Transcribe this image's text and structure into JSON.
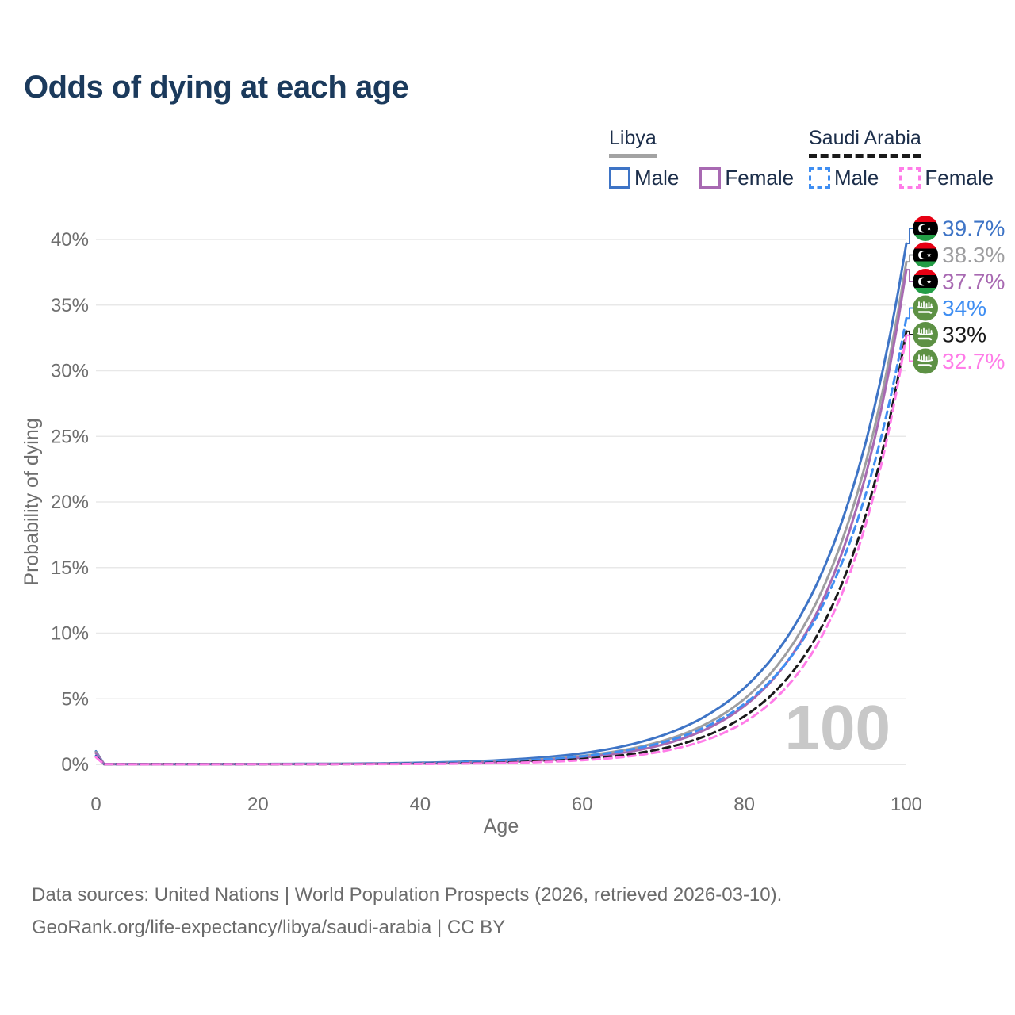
{
  "title": "Odds of dying at each age",
  "legend": {
    "groups": [
      {
        "country": "Libya",
        "underline_style": "solid",
        "underline_color": "#a3a3a3",
        "items": [
          {
            "label": "Male",
            "color": "#3e74c6",
            "dashed": false
          },
          {
            "label": "Female",
            "color": "#a869b2",
            "dashed": false
          }
        ]
      },
      {
        "country": "Saudi Arabia",
        "underline_style": "dashed",
        "underline_color": "#1a1a1a",
        "items": [
          {
            "label": "Male",
            "color": "#3f8ef2",
            "dashed": true
          },
          {
            "label": "Female",
            "color": "#ff7ce8",
            "dashed": true
          }
        ]
      }
    ]
  },
  "chart_data": {
    "type": "line",
    "title": "Odds of dying at each age",
    "xlabel": "Age",
    "ylabel": "Probability of dying",
    "xlim": [
      0,
      100
    ],
    "ylim": [
      0,
      40
    ],
    "xticks": [
      0,
      20,
      40,
      60,
      80,
      100
    ],
    "yticks": [
      0,
      5,
      10,
      15,
      20,
      25,
      30,
      35,
      40
    ],
    "ytick_suffix": "%",
    "grid": "horizontal-only",
    "legend_position": "top-right",
    "age_counter_watermark": "100",
    "x": [
      0,
      1,
      5,
      10,
      15,
      20,
      25,
      30,
      35,
      40,
      45,
      50,
      55,
      60,
      65,
      70,
      75,
      80,
      85,
      90,
      95,
      100
    ],
    "series": [
      {
        "id": "libya-male",
        "name": "Libya Male",
        "country": "Libya",
        "sex": "Male",
        "color": "#3e74c6",
        "dashed": false,
        "flag": "libya",
        "end_label": "39.7%",
        "values": [
          1.0,
          0.03,
          0.02,
          0.02,
          0.025,
          0.03,
          0.04,
          0.05,
          0.08,
          0.125,
          0.2,
          0.33,
          0.53,
          0.85,
          1.38,
          2.23,
          3.6,
          5.82,
          9.41,
          15.2,
          24.57,
          39.7
        ]
      },
      {
        "id": "libya-both",
        "name": "Libya Both sexes",
        "country": "Libya",
        "sex": "Both sexes",
        "color": "#9e9ea0",
        "dashed": false,
        "flag": "libya",
        "end_label": "38.3%",
        "values": [
          0.93,
          0.025,
          0.018,
          0.018,
          0.02,
          0.025,
          0.03,
          0.04,
          0.055,
          0.085,
          0.14,
          0.23,
          0.39,
          0.65,
          1.08,
          1.8,
          2.99,
          4.98,
          8.29,
          13.81,
          23.0,
          38.3
        ]
      },
      {
        "id": "libya-female",
        "name": "Libya Female",
        "country": "Libya",
        "sex": "Female",
        "color": "#a869b2",
        "dashed": false,
        "flag": "libya",
        "end_label": "37.7%",
        "values": [
          0.85,
          0.02,
          0.013,
          0.013,
          0.015,
          0.018,
          0.022,
          0.03,
          0.04,
          0.063,
          0.107,
          0.18,
          0.31,
          0.52,
          0.89,
          1.52,
          2.6,
          4.44,
          7.57,
          12.93,
          22.08,
          37.7
        ]
      },
      {
        "id": "saudi-male",
        "name": "Saudi Arabia Male",
        "country": "Saudi Arabia",
        "sex": "Male",
        "color": "#3f8ef2",
        "dashed": true,
        "flag": "saudi",
        "end_label": "34%",
        "values": [
          0.65,
          0.022,
          0.015,
          0.015,
          0.018,
          0.022,
          0.027,
          0.035,
          0.05,
          0.084,
          0.14,
          0.23,
          0.38,
          0.62,
          1.03,
          1.69,
          2.79,
          4.6,
          7.59,
          12.51,
          20.62,
          34.0
        ]
      },
      {
        "id": "saudi-both",
        "name": "Saudi Arabia Both sexes",
        "country": "Saudi Arabia",
        "sex": "Both sexes",
        "color": "#1a1a1a",
        "dashed": true,
        "flag": "saudi",
        "end_label": "33%",
        "values": [
          0.6,
          0.015,
          0.01,
          0.01,
          0.012,
          0.014,
          0.017,
          0.022,
          0.032,
          0.05,
          0.08,
          0.14,
          0.24,
          0.41,
          0.7,
          1.22,
          2.11,
          3.66,
          6.34,
          10.99,
          19.04,
          33.0
        ]
      },
      {
        "id": "saudi-female",
        "name": "Saudi Arabia Female",
        "country": "Saudi Arabia",
        "sex": "Female",
        "color": "#ff7ce8",
        "dashed": true,
        "flag": "saudi",
        "end_label": "32.7%",
        "values": [
          0.55,
          0.012,
          0.008,
          0.008,
          0.009,
          0.01,
          0.012,
          0.015,
          0.022,
          0.035,
          0.06,
          0.1,
          0.18,
          0.32,
          0.56,
          1.01,
          1.8,
          3.21,
          5.74,
          10.25,
          18.31,
          32.7
        ]
      }
    ]
  },
  "colors": {
    "title_text": "#1b3a5c",
    "legend_text": "#1c2e4a",
    "axis_text": "#6e6e6e",
    "gridline": "#e8e8e8",
    "baseline": "#e0e0e0",
    "watermark": "#c8c8c8",
    "footer_text": "#6b6b6b",
    "libya_flag_red": "#e70013",
    "libya_flag_black": "#000000",
    "libya_flag_green": "#239e46",
    "saudi_flag_green": "#5d9144"
  },
  "footer": {
    "line1": "Data sources: United Nations | World Population Prospects (2026, retrieved 2026-03-10).",
    "line2": "GeoRank.org/life-expectancy/libya/saudi-arabia | CC BY"
  }
}
